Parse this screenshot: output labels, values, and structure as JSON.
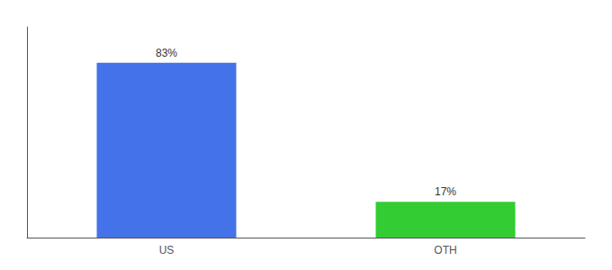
{
  "chart_data": {
    "type": "bar",
    "categories": [
      "US",
      "OTH"
    ],
    "values": [
      83,
      17
    ],
    "value_labels": [
      "83%",
      "17%"
    ],
    "colors": [
      "#4472e8",
      "#33cc33"
    ],
    "ylim": [
      0,
      100
    ],
    "data_labels": true,
    "tick_labels": "x",
    "grid": false
  }
}
